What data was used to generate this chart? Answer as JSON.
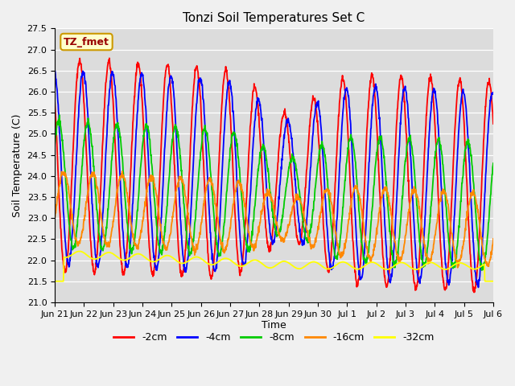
{
  "title": "Tonzi Soil Temperatures Set C",
  "xlabel": "Time",
  "ylabel": "Soil Temperature (C)",
  "ylim": [
    21.0,
    27.5
  ],
  "yticks": [
    21.0,
    21.5,
    22.0,
    22.5,
    23.0,
    23.5,
    24.0,
    24.5,
    25.0,
    25.5,
    26.0,
    26.5,
    27.0,
    27.5
  ],
  "xtick_labels": [
    "Jun 21",
    "Jun 22",
    "Jun 23",
    "Jun 24",
    "Jun 25",
    "Jun 26",
    "Jun 27",
    "Jun 28",
    "Jun 29",
    "Jun 30",
    "Jul 1",
    "Jul 2",
    "Jul 3",
    "Jul 4",
    "Jul 5",
    "Jul 6"
  ],
  "xtick_positions": [
    0,
    1,
    2,
    3,
    4,
    5,
    6,
    7,
    8,
    9,
    10,
    11,
    12,
    13,
    14,
    15
  ],
  "line_colors": [
    "#ff0000",
    "#0000ff",
    "#00cc00",
    "#ff8800",
    "#ffff00"
  ],
  "line_labels": [
    "-2cm",
    "-4cm",
    "-8cm",
    "-16cm",
    "-32cm"
  ],
  "bg_color": "#dcdcdc",
  "fig_bg_color": "#f0f0f0",
  "legend_label": "TZ_fmet",
  "legend_facecolor": "#ffffcc",
  "legend_edgecolor": "#cc9900",
  "legend_text_color": "#990000",
  "n_points_per_day": 96,
  "n_days": 15,
  "base_temp": 24.0,
  "amplitudes": [
    2.5,
    2.3,
    1.5,
    0.85,
    0.18
  ],
  "phase_shifts": [
    0.0,
    0.12,
    0.28,
    0.45,
    0.0
  ],
  "mean_offsets": [
    0.0,
    -0.05,
    -0.45,
    -1.0,
    -2.1
  ],
  "trend_slope": -0.035
}
